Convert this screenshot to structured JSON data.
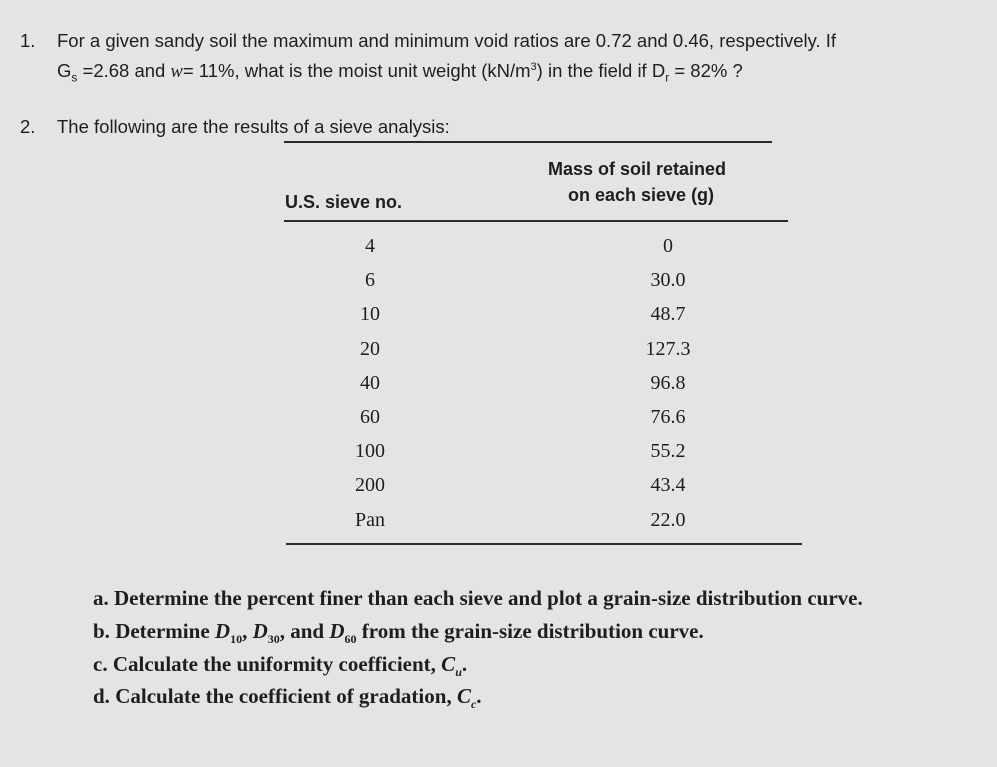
{
  "question1": {
    "number": "1.",
    "line1": "For a given sandy soil the maximum and minimum void ratios are 0.72 and 0.46, respectively. If",
    "line2_a": "G",
    "line2_sub_s": "s",
    "line2_b": " =2.68 and ",
    "w_symbol": "w",
    "line2_c": "= 11%, what is the moist unit weight (kN/m",
    "line2_sup": "3",
    "line2_d": ") in the field if D",
    "line2_sub_r": "r",
    "line2_e": " = 82% ?"
  },
  "question2": {
    "number": "2.",
    "intro": "The following are the results of a sieve analysis:",
    "table": {
      "headers": {
        "sieve": "U.S. sieve no.",
        "mass_line1": "Mass of soil retained",
        "mass_line2": "on each sieve (g)"
      },
      "rows": [
        {
          "sieve": "4",
          "mass": "0"
        },
        {
          "sieve": "6",
          "mass": "30.0"
        },
        {
          "sieve": "10",
          "mass": "48.7"
        },
        {
          "sieve": "20",
          "mass": "127.3"
        },
        {
          "sieve": "40",
          "mass": "96.8"
        },
        {
          "sieve": "60",
          "mass": "76.6"
        },
        {
          "sieve": "100",
          "mass": "55.2"
        },
        {
          "sieve": "200",
          "mass": "43.4"
        },
        {
          "sieve": "Pan",
          "mass": "22.0"
        }
      ]
    },
    "items": {
      "a": {
        "label": "a.",
        "text": "Determine the percent finer than each sieve and plot a grain-size distribution curve."
      },
      "b": {
        "label": "b.",
        "t1": "Determine ",
        "d": "D",
        "s10": "10",
        "t2": ", ",
        "s30": "30",
        "t3": ", and ",
        "s60": "60",
        "t4": " from the grain-size distribution curve."
      },
      "c": {
        "label": "c.",
        "text": "Calculate the uniformity coefficient, ",
        "sym": "C",
        "sub": "u",
        "end": "."
      },
      "d": {
        "label": "d.",
        "text": "Calculate the coefficient of gradation, ",
        "sym": "C",
        "sub": "c",
        "end": "."
      }
    }
  }
}
